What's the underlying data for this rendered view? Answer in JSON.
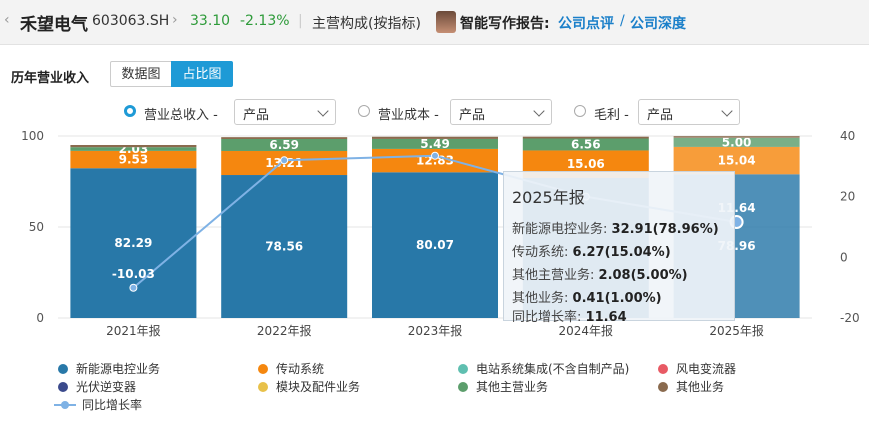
{
  "header": {
    "back_icon": "chevron-left-icon",
    "company_name": "禾望电气",
    "ticker": "603063.SH",
    "price": "33.10",
    "change": "-2.13%",
    "breakdown_label": "主营构成(按指标)",
    "ai_label": "智能写作报告:",
    "link_review": "公司点评",
    "separator": "/",
    "link_depth": "公司深度",
    "price_color": "#2e9b3a"
  },
  "section": {
    "title": "历年营业收入",
    "tab_data": "数据图",
    "tab_ratio": "占比图",
    "active_tab": "占比图"
  },
  "filters": [
    {
      "label": "营业总收入 -",
      "select": "产品",
      "checked": true
    },
    {
      "label": "营业成本 -",
      "select": "产品",
      "checked": false
    },
    {
      "label": "毛利 -",
      "select": "产品",
      "checked": false
    }
  ],
  "legend": [
    {
      "name": "新能源电控业务",
      "color": "#2878a8"
    },
    {
      "name": "传动系统",
      "color": "#f5870f"
    },
    {
      "name": "电站系统集成(不含自制产品)",
      "color": "#5fbfb0"
    },
    {
      "name": "风电变流器",
      "color": "#e85a64"
    },
    {
      "name": "光伏逆变器",
      "color": "#3b4a8c"
    },
    {
      "name": "模块及配件业务",
      "color": "#e8c14a"
    },
    {
      "name": "其他主营业务",
      "color": "#5c9e6c"
    },
    {
      "name": "其他业务",
      "color": "#8a6a4e"
    },
    {
      "name": "同比增长率",
      "color": "#7fb2e5"
    }
  ],
  "chart_data": {
    "type": "bar",
    "stacked": true,
    "categories": [
      "2021年报",
      "2022年报",
      "2023年报",
      "2024年报",
      "2025年报"
    ],
    "ylim": [
      0,
      100
    ],
    "yticks": [
      "0",
      "50",
      "100"
    ],
    "y2lim": [
      -20,
      40
    ],
    "y2ticks": [
      "-20",
      "0",
      "20",
      "40"
    ],
    "series": [
      {
        "name": "新能源电控业务",
        "color": "#2878a8",
        "values": [
          82.29,
          78.56,
          80.07,
          77.0,
          78.96
        ],
        "labels": [
          "82.29",
          "78.56",
          "80.07",
          "",
          "78.96"
        ]
      },
      {
        "name": "传动系统",
        "color": "#f5870f",
        "values": [
          9.53,
          13.21,
          12.83,
          15.06,
          15.04
        ],
        "labels": [
          "9.53",
          "13.21",
          "12.83",
          "15.06",
          "15.04"
        ]
      },
      {
        "name": "其他主营业务",
        "color": "#5c9e6c",
        "values": [
          2.03,
          6.59,
          5.49,
          6.56,
          5.0
        ],
        "labels": [
          "2.03",
          "6.59",
          "5.49",
          "6.56",
          "5.00"
        ]
      },
      {
        "name": "其他业务",
        "color": "#8a6a4e",
        "values": [
          1.2,
          1.0,
          1.2,
          1.0,
          1.0
        ],
        "labels": [
          "",
          "",
          "",
          "",
          ""
        ]
      }
    ],
    "growth": {
      "name": "同比增长率",
      "color": "#7fb2e5",
      "values": [
        -10.03,
        32.0,
        33.5,
        20.0,
        11.64
      ],
      "labels": [
        "-10.03",
        "",
        "",
        "",
        "11.64"
      ]
    },
    "highlight_index": 4
  },
  "tooltip": {
    "title": "2025年报",
    "rows": [
      {
        "label": "新能源电控业务:",
        "value": "32.91(78.96%)"
      },
      {
        "label": "传动系统:",
        "value": "6.27(15.04%)"
      },
      {
        "label": "其他主营业务:",
        "value": "2.08(5.00%)"
      },
      {
        "label": "其他业务:",
        "value": "0.41(1.00%)"
      },
      {
        "label": "同比增长率:",
        "value": "11.64"
      }
    ]
  }
}
